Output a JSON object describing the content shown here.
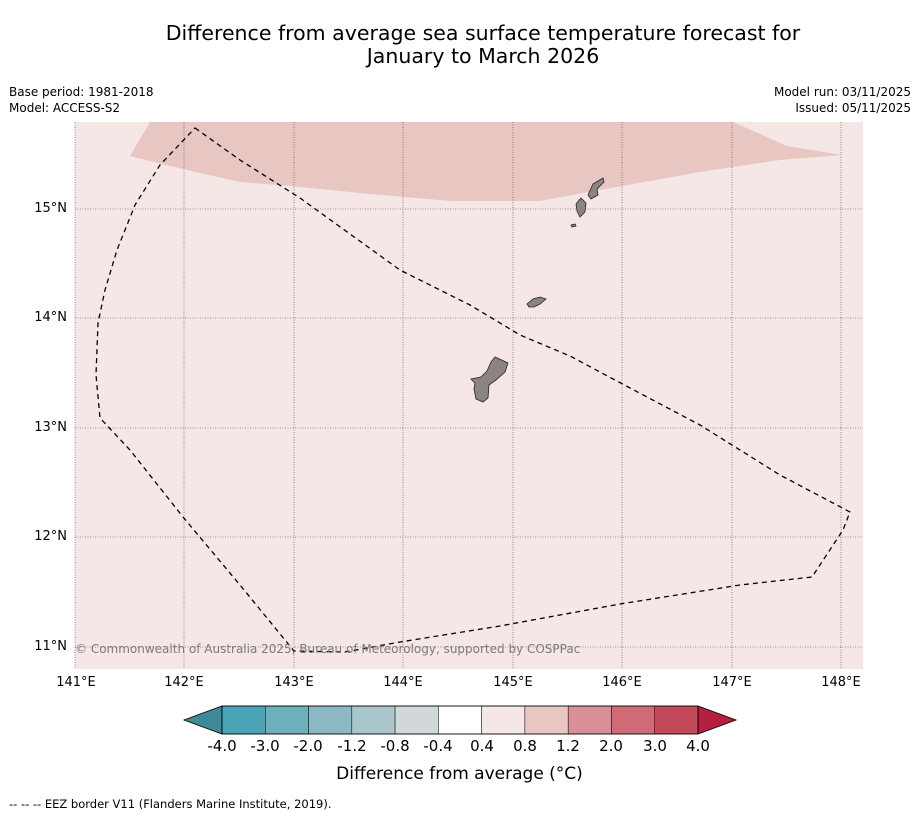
{
  "title_line1": "Difference from average sea surface temperature forecast for",
  "title_line2": "January to March 2026",
  "meta_left": {
    "base_period": "Base period: 1981-2018",
    "model": "Model: ACCESS-S2"
  },
  "meta_right": {
    "model_run": "Model run: 03/11/2025",
    "issued": "Issued: 05/11/2025"
  },
  "lat_labels": [
    "15°N",
    "14°N",
    "13°N",
    "12°N",
    "11°N"
  ],
  "lon_labels": [
    "141°E",
    "142°E",
    "143°E",
    "144°E",
    "145°E",
    "146°E",
    "147°E",
    "148°E"
  ],
  "copyright": "© Commonwealth of Australia 2025, Bureau of Meteorology, supported by COSPPac",
  "colorbar": {
    "title": "Difference from average (°C)",
    "ticks": [
      "-4.0",
      "-3.0",
      "-2.0",
      "-1.2",
      "-0.8",
      "-0.4",
      "0.4",
      "0.8",
      "1.2",
      "2.0",
      "3.0",
      "4.0"
    ],
    "colors": [
      "#4aa4b5",
      "#6fb0bd",
      "#8bb8c2",
      "#a9c6cb",
      "#d0d8da",
      "#ffffff",
      "#f5e7e6",
      "#e8c7c3",
      "#d98f97",
      "#cf6a76",
      "#c34a5a"
    ],
    "under_color": "#3d8a98",
    "over_color": "#b52040"
  },
  "footnote": "-- -- -- EEZ border V11 (Flanders Marine Institute, 2019).",
  "map_colors": {
    "background_anomaly": "#f5e7e6",
    "warm_anomaly": "#e8c7c3",
    "land": "#8c8482"
  }
}
